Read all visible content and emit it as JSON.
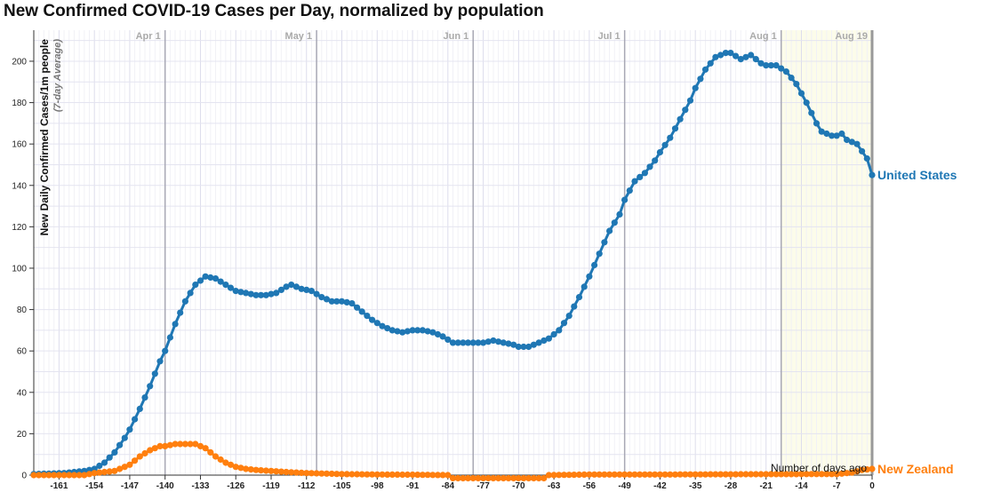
{
  "chart_data": {
    "type": "line",
    "title": "New Confirmed COVID-19 Cases per Day, normalized by population",
    "ylabel": "New Daily Confirmed Cases/1m people",
    "ylabel_sub": "(7-day Average)",
    "xlabel": "Number of days ago",
    "xlim": [
      -166,
      0
    ],
    "ylim": [
      0,
      215
    ],
    "x_ticks": [
      -161,
      -154,
      -147,
      -140,
      -133,
      -126,
      -119,
      -112,
      -105,
      -98,
      -91,
      -84,
      -77,
      -70,
      -63,
      -56,
      -49,
      -42,
      -35,
      -28,
      -21,
      -14,
      -7,
      0
    ],
    "y_ticks": [
      0,
      20,
      40,
      60,
      80,
      100,
      120,
      140,
      160,
      180,
      200
    ],
    "month_markers": [
      {
        "label": "Apr 1",
        "x": -140
      },
      {
        "label": "May 1",
        "x": -110
      },
      {
        "label": "Jun 1",
        "x": -79
      },
      {
        "label": "Jul 1",
        "x": -49
      },
      {
        "label": "Aug 1",
        "x": -18
      },
      {
        "label": "Aug 19",
        "x": 0
      }
    ],
    "grid": true,
    "series": [
      {
        "name": "United States",
        "color": "#1f77b4",
        "points": [
          [
            -166,
            0.5
          ],
          [
            -160,
            1
          ],
          [
            -156,
            2
          ],
          [
            -154,
            3
          ],
          [
            -152,
            6
          ],
          [
            -150,
            11
          ],
          [
            -148,
            18
          ],
          [
            -147,
            22
          ],
          [
            -145,
            32
          ],
          [
            -143,
            43
          ],
          [
            -141,
            55
          ],
          [
            -140,
            60
          ],
          [
            -138,
            73
          ],
          [
            -136,
            84
          ],
          [
            -134,
            92
          ],
          [
            -132,
            96
          ],
          [
            -130,
            95
          ],
          [
            -128,
            92
          ],
          [
            -126,
            89
          ],
          [
            -124,
            88
          ],
          [
            -122,
            87
          ],
          [
            -120,
            87
          ],
          [
            -118,
            88
          ],
          [
            -116,
            91
          ],
          [
            -115,
            92
          ],
          [
            -113,
            90
          ],
          [
            -111,
            89
          ],
          [
            -109,
            86
          ],
          [
            -107,
            84
          ],
          [
            -105,
            84
          ],
          [
            -103,
            83
          ],
          [
            -101,
            79
          ],
          [
            -99,
            75
          ],
          [
            -97,
            72
          ],
          [
            -95,
            70
          ],
          [
            -93,
            69
          ],
          [
            -91,
            70
          ],
          [
            -89,
            70
          ],
          [
            -87,
            69
          ],
          [
            -85,
            67
          ],
          [
            -83,
            64
          ],
          [
            -81,
            64
          ],
          [
            -79,
            64
          ],
          [
            -77,
            64
          ],
          [
            -75,
            65
          ],
          [
            -73,
            64
          ],
          [
            -71,
            63
          ],
          [
            -70,
            62
          ],
          [
            -68,
            62
          ],
          [
            -66,
            64
          ],
          [
            -64,
            66
          ],
          [
            -62,
            70
          ],
          [
            -60,
            77
          ],
          [
            -58,
            86
          ],
          [
            -56,
            96
          ],
          [
            -54,
            107
          ],
          [
            -52,
            118
          ],
          [
            -50,
            126
          ],
          [
            -49,
            133
          ],
          [
            -47,
            142
          ],
          [
            -45,
            146
          ],
          [
            -43,
            152
          ],
          [
            -42,
            156
          ],
          [
            -40,
            163
          ],
          [
            -38,
            172
          ],
          [
            -36,
            181
          ],
          [
            -35,
            187
          ],
          [
            -33,
            196
          ],
          [
            -31,
            202
          ],
          [
            -29,
            204
          ],
          [
            -28,
            204
          ],
          [
            -26,
            201
          ],
          [
            -24,
            203
          ],
          [
            -22,
            199
          ],
          [
            -21,
            198
          ],
          [
            -19,
            198
          ],
          [
            -17,
            195
          ],
          [
            -15,
            189
          ],
          [
            -13,
            180
          ],
          [
            -11,
            170
          ],
          [
            -10,
            166
          ],
          [
            -8,
            164
          ],
          [
            -7,
            164
          ],
          [
            -6,
            165
          ],
          [
            -5,
            162
          ],
          [
            -3,
            160
          ],
          [
            -1,
            153
          ],
          [
            0,
            145
          ]
        ]
      },
      {
        "name": "New Zealand",
        "color": "#ff7f0e",
        "points": [
          [
            -166,
            0
          ],
          [
            -156,
            0
          ],
          [
            -154,
            1
          ],
          [
            -150,
            2
          ],
          [
            -147,
            5
          ],
          [
            -145,
            9
          ],
          [
            -143,
            12
          ],
          [
            -141,
            14
          ],
          [
            -140,
            14
          ],
          [
            -138,
            15
          ],
          [
            -136,
            15
          ],
          [
            -134,
            15
          ],
          [
            -132,
            13
          ],
          [
            -130,
            9
          ],
          [
            -128,
            6
          ],
          [
            -126,
            4
          ],
          [
            -124,
            3
          ],
          [
            -122,
            2.5
          ],
          [
            -119,
            2
          ],
          [
            -116,
            1.5
          ],
          [
            -112,
            1
          ],
          [
            -105,
            0.5
          ],
          [
            -98,
            0.3
          ],
          [
            -91,
            0.2
          ],
          [
            -84,
            0
          ],
          [
            -83,
            -1.5
          ],
          [
            -70,
            -1.5
          ],
          [
            -65,
            -1.5
          ],
          [
            -64,
            0
          ],
          [
            -56,
            0.3
          ],
          [
            -42,
            0.3
          ],
          [
            -28,
            0.4
          ],
          [
            -14,
            0.5
          ],
          [
            -7,
            0.5
          ],
          [
            -4,
            1.2
          ],
          [
            -2,
            2.5
          ],
          [
            0,
            3
          ]
        ]
      }
    ]
  }
}
